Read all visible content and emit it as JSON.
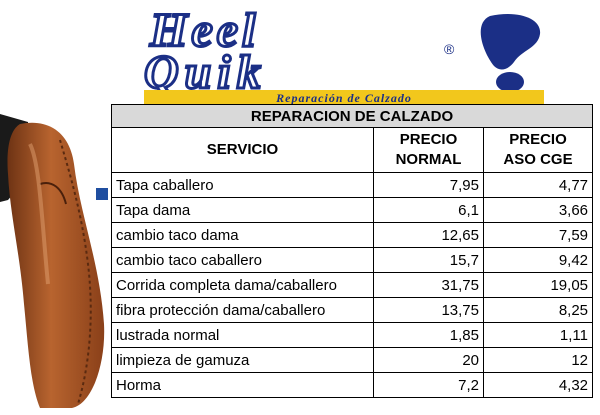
{
  "logo": {
    "brand_line1": "Heel",
    "brand_line2": "Quik",
    "registered_mark": "®",
    "tagline": "Reparación de Calzado",
    "brand_color": "#1b2f86",
    "tagline_bg": "#f2c71c",
    "icon": "footprint-icon"
  },
  "image": {
    "icon": "leather-shoe-icon",
    "shoe_color": "#a9552a"
  },
  "table": {
    "title": "REPARACION DE CALZADO",
    "headers": {
      "service": "SERVICIO",
      "normal_line1": "PRECIO",
      "normal_line2": "NORMAL",
      "aso_line1": "PRECIO",
      "aso_line2": "ASO CGE"
    },
    "rows": [
      {
        "service": "Tapa caballero",
        "normal": "7,95",
        "aso": "4,77"
      },
      {
        "service": "Tapa dama",
        "normal": "6,1",
        "aso": "3,66"
      },
      {
        "service": "cambio taco dama",
        "normal": "12,65",
        "aso": "7,59"
      },
      {
        "service": "cambio taco caballero",
        "normal": "15,7",
        "aso": "9,42"
      },
      {
        "service": "Corrida completa dama/caballero",
        "normal": "31,75",
        "aso": "19,05"
      },
      {
        "service": "fibra protección dama/caballero",
        "normal": "13,75",
        "aso": "8,25"
      },
      {
        "service": "lustrada normal",
        "normal": "1,85",
        "aso": "1,11"
      },
      {
        "service": "limpieza de gamuza",
        "normal": "20",
        "aso": "12"
      },
      {
        "service": "Horma",
        "normal": "7,2",
        "aso": "4,32"
      }
    ],
    "header_bg": "#d9d9d9"
  }
}
